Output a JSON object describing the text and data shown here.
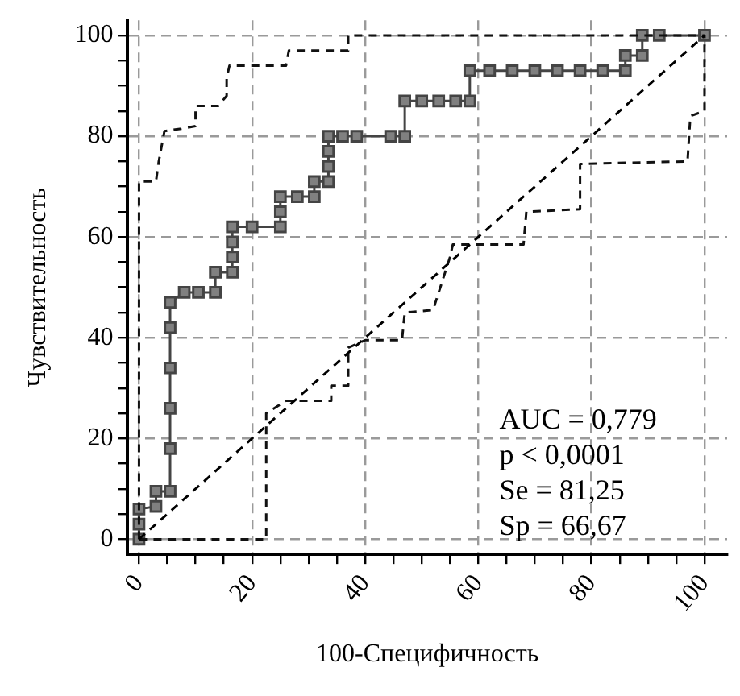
{
  "chart_data": {
    "type": "line",
    "xlabel": "100-Специфичность",
    "ylabel": "Чувствительность",
    "xlim": [
      -2,
      104
    ],
    "ylim": [
      -3,
      103
    ],
    "xticks": [
      0,
      {
        "value": 5,
        "label": null
      },
      {
        "value": 10,
        "label": null
      },
      {
        "value": 15,
        "label": null
      },
      20,
      {
        "value": 25,
        "label": null
      },
      {
        "value": 30,
        "label": null
      },
      {
        "value": 35,
        "label": null
      },
      40,
      {
        "value": 45,
        "label": null
      },
      {
        "value": 50,
        "label": null
      },
      {
        "value": 55,
        "label": null
      },
      60,
      {
        "value": 65,
        "label": null
      },
      {
        "value": 70,
        "label": null
      },
      {
        "value": 75,
        "label": null
      },
      80,
      {
        "value": 85,
        "label": null
      },
      {
        "value": 90,
        "label": null
      },
      {
        "value": 95,
        "label": null
      },
      100
    ],
    "yticks": [
      0,
      {
        "value": 5,
        "label": null
      },
      {
        "value": 10,
        "label": null
      },
      {
        "value": 15,
        "label": null
      },
      20,
      {
        "value": 25,
        "label": null
      },
      {
        "value": 30,
        "label": null
      },
      {
        "value": 35,
        "label": null
      },
      40,
      {
        "value": 45,
        "label": null
      },
      {
        "value": 50,
        "label": null
      },
      {
        "value": 55,
        "label": null
      },
      60,
      {
        "value": 65,
        "label": null
      },
      {
        "value": 70,
        "label": null
      },
      {
        "value": 75,
        "label": null
      },
      80,
      {
        "value": 85,
        "label": null
      },
      {
        "value": 90,
        "label": null
      },
      {
        "value": 95,
        "label": null
      },
      100
    ],
    "grid": true,
    "legend": false,
    "series": [
      {
        "color": "#000000",
        "line_style": "dashed",
        "marker": "none",
        "x": [
          0,
          100
        ],
        "values": [
          0,
          100
        ]
      },
      {
        "color": "#111111",
        "line_style": "dashed",
        "marker": "none",
        "x": [
          0,
          0,
          3,
          3.5,
          4.5,
          7.5,
          10,
          10,
          14,
          15.5,
          15.5,
          16,
          26,
          26.5,
          37,
          37,
          100
        ],
        "values": [
          0,
          71,
          71,
          75,
          81,
          81.5,
          82,
          86,
          86,
          88,
          91.5,
          94,
          94,
          97,
          97,
          100,
          100
        ]
      },
      {
        "color": "#111111",
        "line_style": "dashed",
        "marker": "none",
        "x": [
          0,
          18.5,
          22.5,
          22.5,
          26,
          34,
          34,
          37,
          37,
          40,
          46.5,
          47,
          52,
          55,
          55.5,
          68,
          68.5,
          78,
          78,
          97,
          97.5,
          100,
          100
        ],
        "values": [
          0,
          0,
          0,
          25,
          27.5,
          27.5,
          30.5,
          30.5,
          38,
          39.5,
          39.5,
          45,
          45.5,
          56,
          58.5,
          58.5,
          65,
          65.5,
          74.5,
          75,
          84,
          85,
          100
        ]
      },
      {
        "color": "#444444",
        "line_style": "solid",
        "marker": "square",
        "x": [
          0,
          0,
          0,
          3,
          3,
          5.5,
          5.5,
          5.5,
          5.5,
          5.5,
          5.5,
          8,
          10.5,
          13.5,
          13.5,
          16.5,
          16.5,
          16.5,
          16.5,
          20,
          25,
          25,
          25,
          28,
          31,
          31,
          33.5,
          33.5,
          33.5,
          33.5,
          36,
          38.5,
          44.5,
          47,
          47,
          50,
          53,
          56,
          58.5,
          58.5,
          62,
          66,
          70,
          74,
          78,
          82,
          86,
          86,
          89,
          89,
          92,
          100
        ],
        "values": [
          0,
          3,
          6,
          6.5,
          9.5,
          9.5,
          18,
          26,
          34,
          42,
          47,
          49,
          49,
          49,
          53,
          53,
          56,
          59,
          62,
          62,
          62,
          65,
          68,
          68,
          68,
          71,
          71,
          74,
          77,
          80,
          80,
          80,
          80,
          80,
          87,
          87,
          87,
          87,
          87,
          93,
          93,
          93,
          93,
          93,
          93,
          93,
          93,
          96,
          96,
          100,
          100,
          100
        ]
      }
    ],
    "annotations": [
      "AUC = 0,779",
      "p < 0,0001",
      "Se = 81,25",
      "Sp = 66,67"
    ]
  }
}
